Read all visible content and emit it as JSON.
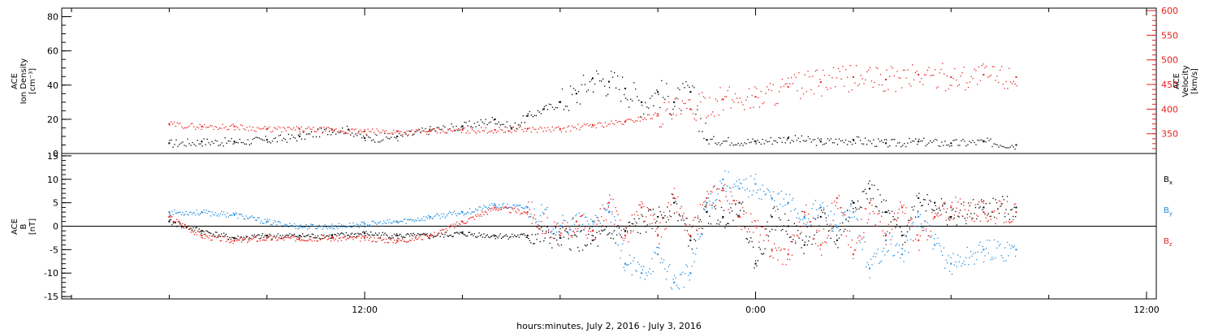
{
  "chart_data": [
    {
      "type": "scatter",
      "panel": "plasma",
      "ylabel_left": [
        "ACE",
        "Ion Density",
        "[cm⁻³]"
      ],
      "ylabel_right": [
        "ACE",
        "Velocity",
        "[km/s]"
      ],
      "ylim_left": [
        0,
        85
      ],
      "ylim_right": [
        310,
        605
      ],
      "yticks_left": [
        "0",
        "20",
        "40",
        "60",
        "80"
      ],
      "yticks_right": [
        "350",
        "400",
        "450",
        "500",
        "550",
        "600"
      ],
      "right_axis_color": "#e8201c",
      "series": [
        {
          "name": "",
          "axis": "left",
          "color": "#000000",
          "x": [
            -18,
            -17,
            -16,
            -15,
            -14,
            -13,
            -12.5,
            -12,
            -11,
            -10,
            -9,
            -8,
            -7.5,
            -7,
            -6.5,
            -6,
            -5.5,
            -5,
            -4.5,
            -4,
            -3.5,
            -3,
            -2.5,
            -2,
            -1.5,
            0,
            1,
            2,
            3,
            4,
            5,
            6,
            7,
            8
          ],
          "y": [
            6,
            7,
            7,
            8,
            10,
            14,
            14,
            9,
            10,
            14,
            16,
            20,
            15,
            22,
            26,
            30,
            35,
            44,
            42,
            38,
            30,
            36,
            30,
            36,
            8,
            7,
            9,
            7,
            8,
            6,
            7,
            6,
            7,
            5
          ]
        },
        {
          "name": "",
          "axis": "right",
          "color": "#e8201c",
          "x": [
            -18,
            -17,
            -16,
            -15,
            -14,
            -13,
            -12,
            -11,
            -10,
            -9,
            -8,
            -7,
            -6,
            -5,
            -4,
            -3,
            -2,
            -1,
            0,
            1,
            2,
            3,
            4,
            5,
            6,
            7,
            8
          ],
          "y": [
            370,
            365,
            365,
            360,
            360,
            358,
            355,
            355,
            355,
            358,
            358,
            360,
            360,
            368,
            375,
            390,
            400,
            420,
            425,
            445,
            455,
            465,
            460,
            470,
            465,
            470,
            465
          ]
        }
      ]
    },
    {
      "type": "scatter",
      "panel": "magnetic-field",
      "ylabel": [
        "ACE",
        "B",
        "[nT]"
      ],
      "ylim": [
        -15.5,
        15.5
      ],
      "yticks": [
        "15",
        "10",
        "5",
        "0",
        "-5",
        "-10",
        "-15"
      ],
      "zero_line": true,
      "legend": "right",
      "legend_entries": [
        {
          "label": "B",
          "sub": "x",
          "color": "#000000"
        },
        {
          "label": "B",
          "sub": "y",
          "color": "#1f8de0"
        },
        {
          "label": "B",
          "sub": "z",
          "color": "#e8201c"
        }
      ],
      "series": [
        {
          "name": "Bx",
          "color": "#000000",
          "x": [
            -18,
            -17,
            -16,
            -15,
            -14,
            -13,
            -12,
            -11,
            -10,
            -9,
            -8,
            -7,
            -6,
            -5,
            -4,
            -3,
            -2.5,
            -2,
            -1.5,
            -1,
            -0.5,
            0,
            0.5,
            1,
            1.5,
            2,
            2.5,
            3,
            3.5,
            4,
            4.5,
            5,
            5.5,
            6,
            7,
            8
          ],
          "y": [
            1,
            -1,
            -2.5,
            -2,
            -2,
            -2,
            -1.5,
            -2,
            -2,
            -1.5,
            -2,
            -2,
            -2.5,
            -3,
            -1,
            2,
            5,
            -3,
            3,
            2,
            5,
            -8,
            2,
            0,
            -4,
            2,
            -3,
            5,
            8,
            3,
            -2,
            6,
            5,
            2,
            4,
            4
          ]
        },
        {
          "name": "By",
          "color": "#1f8de0",
          "x": [
            -18,
            -17,
            -16,
            -15,
            -14,
            -13,
            -12,
            -11,
            -10,
            -9,
            -8,
            -7,
            -6,
            -5,
            -4.5,
            -4,
            -3.5,
            -3,
            -2.5,
            -2,
            -1.5,
            -1,
            -0.5,
            0,
            0.5,
            1,
            1.5,
            2,
            2.5,
            3,
            3.5,
            4,
            4.5,
            5,
            5.5,
            6,
            7,
            8
          ],
          "y": [
            3,
            3,
            2.5,
            1,
            0,
            0,
            0.5,
            1,
            2,
            3,
            4.5,
            4,
            0,
            1,
            3,
            -8,
            -10,
            -6,
            -12,
            -10,
            5,
            10,
            8,
            9,
            6,
            5,
            2,
            4,
            0,
            3,
            -9,
            -3,
            -6,
            2,
            -4,
            -8,
            -5,
            -5
          ]
        },
        {
          "name": "Bz",
          "color": "#e8201c",
          "x": [
            -18,
            -17,
            -16,
            -15,
            -14,
            -13,
            -12,
            -11,
            -10,
            -9,
            -8,
            -7,
            -6,
            -5.5,
            -5,
            -4.5,
            -4,
            -3.5,
            -3,
            -2.5,
            -2,
            -1.5,
            -1,
            -0.5,
            0,
            0.5,
            1,
            1.5,
            2,
            2.5,
            3,
            3.5,
            4,
            4.5,
            5,
            5.5,
            6,
            7,
            8
          ],
          "y": [
            2,
            -2,
            -3,
            -2.5,
            -2.5,
            -2.5,
            -2.5,
            -3,
            -2,
            1,
            4,
            3,
            -2,
            1,
            -1,
            5,
            -2,
            4,
            -2,
            6,
            -2,
            6,
            8,
            2,
            0,
            -5,
            -6,
            3,
            -4,
            6,
            -6,
            5,
            -2,
            4,
            -3,
            2,
            4,
            3,
            3
          ]
        }
      ]
    }
  ],
  "x_axis": {
    "label": "hours:minutes, July  2, 2016 - July  3, 2016",
    "range": [
      -21.3,
      12.3
    ],
    "tick_labels": [
      {
        "x": -12,
        "text": "12:00"
      },
      {
        "x": 0,
        "text": "0:00"
      },
      {
        "x": 12,
        "text": "12:00"
      }
    ]
  }
}
